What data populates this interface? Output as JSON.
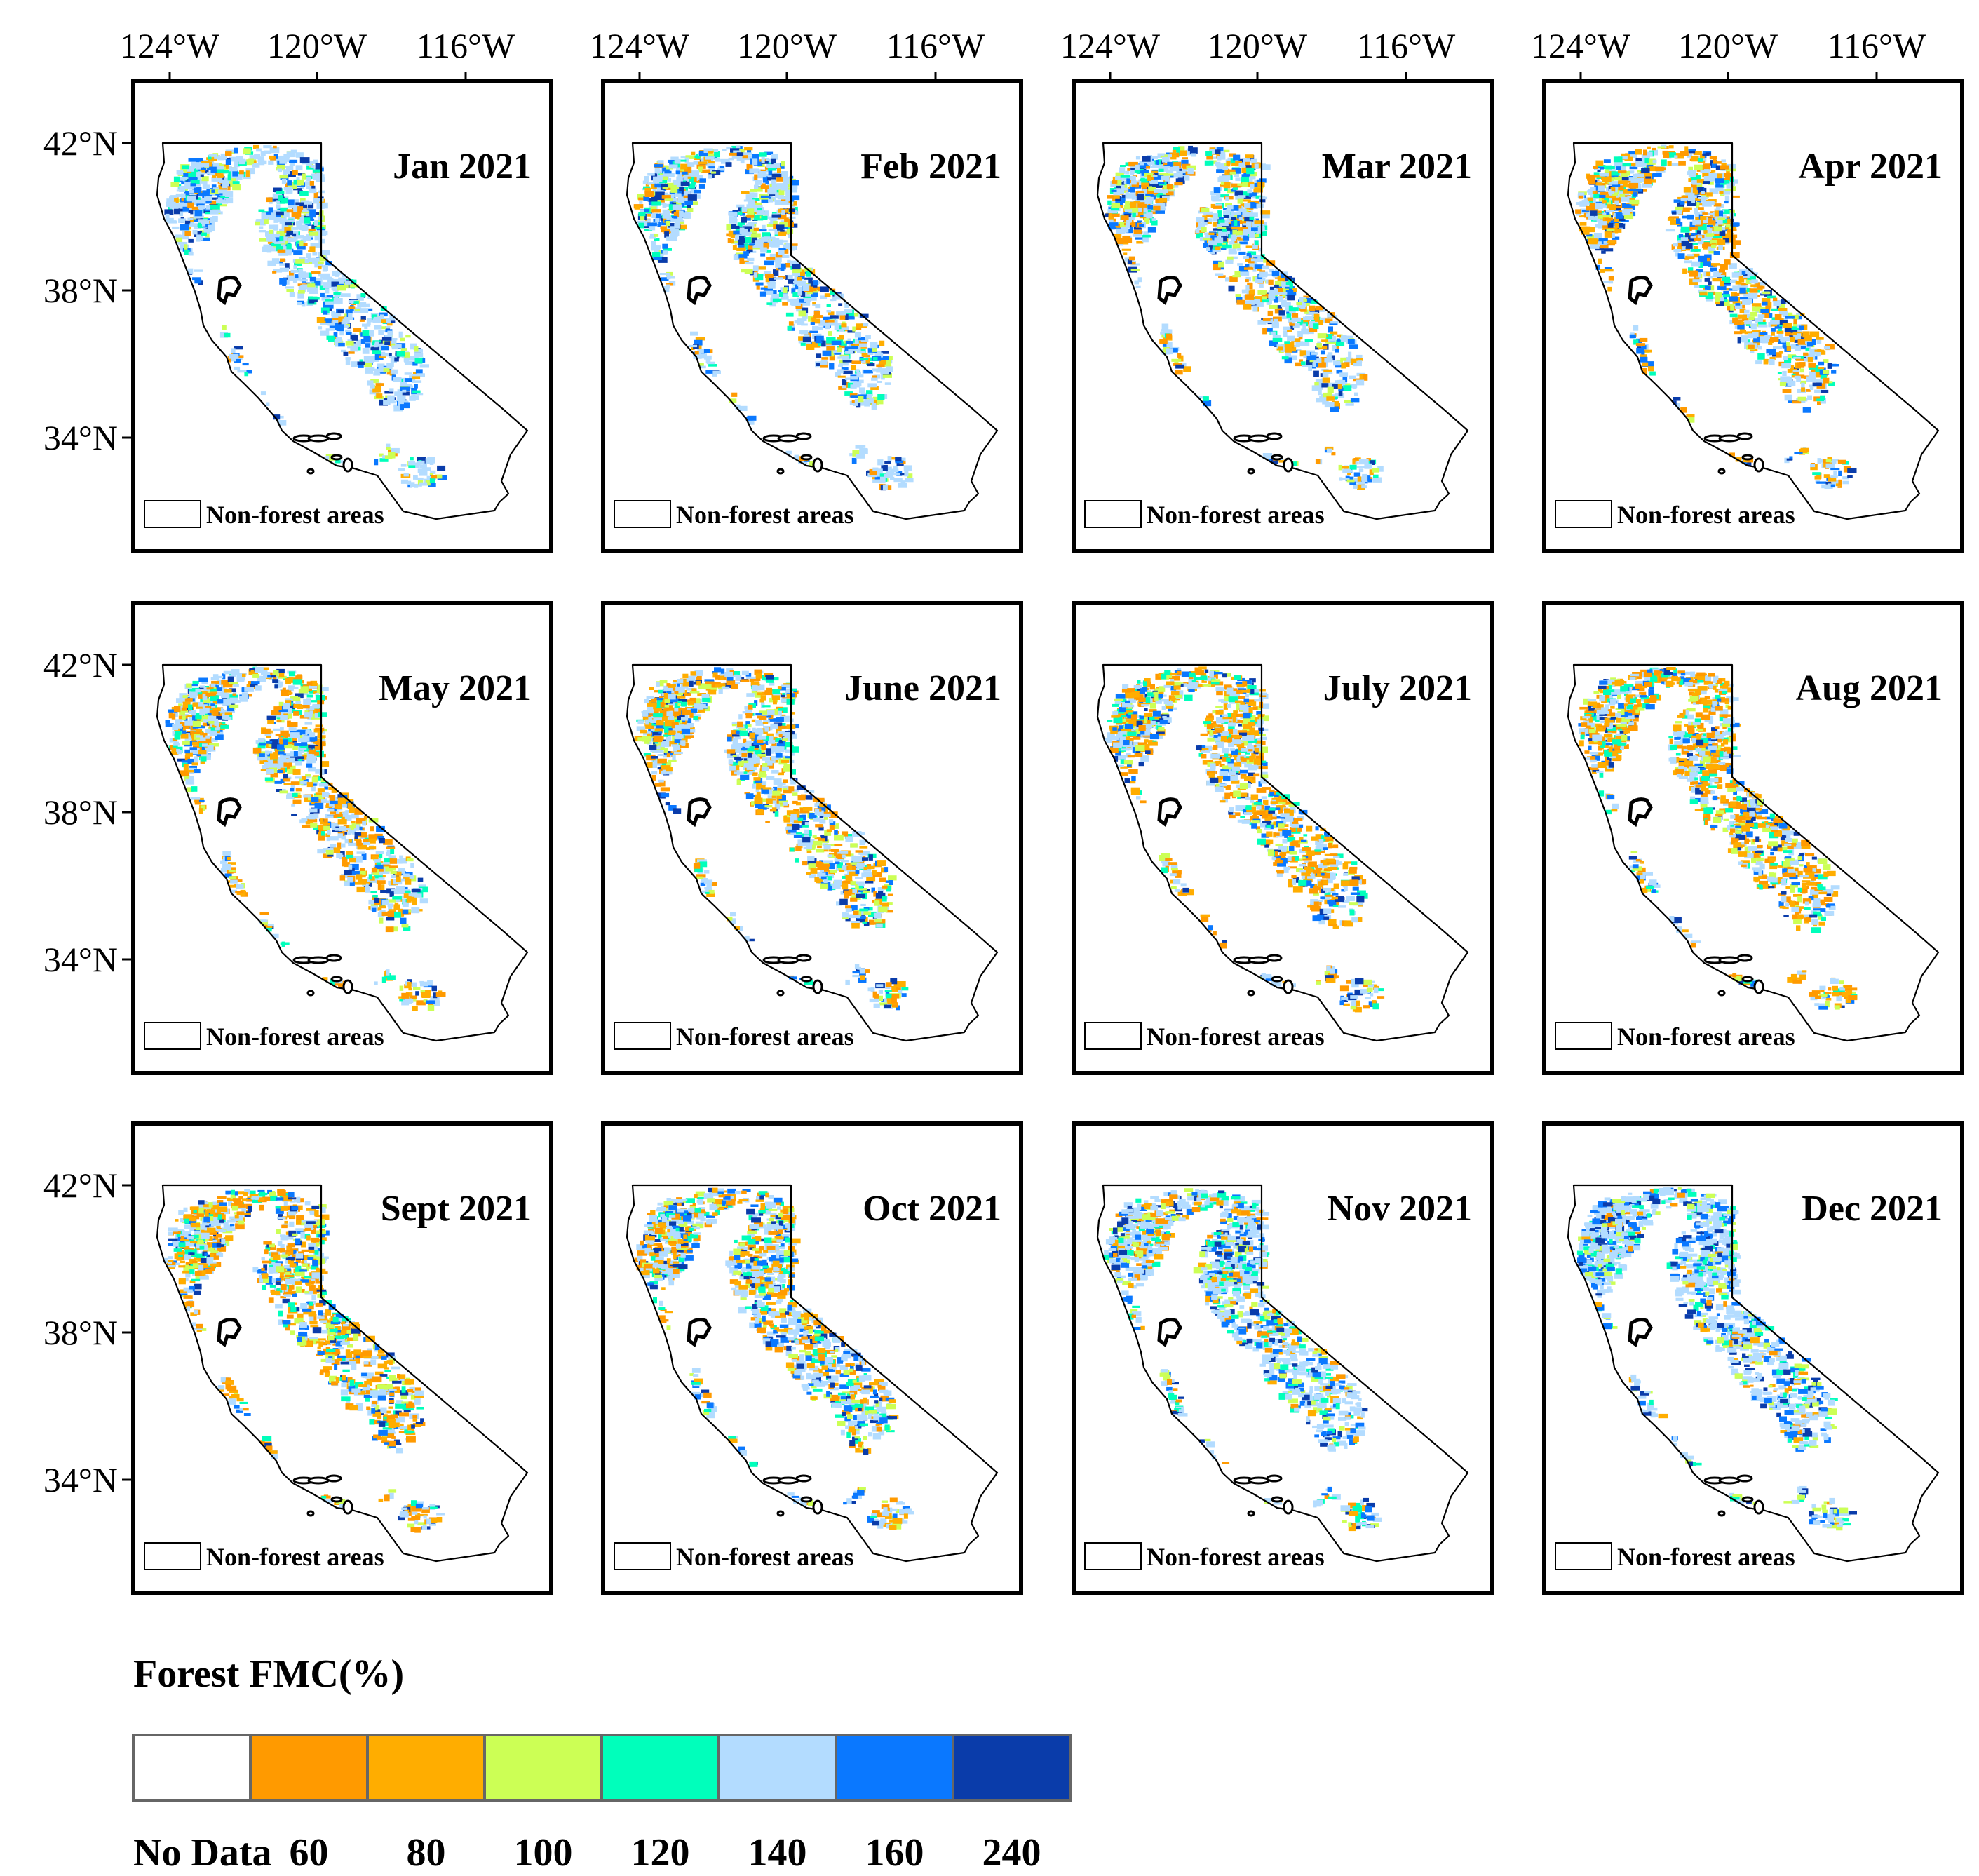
{
  "figure": {
    "lon_labels": [
      "124°W",
      "120°W",
      "116°W"
    ],
    "lat_labels": [
      "42°N",
      "38°N",
      "34°N"
    ],
    "nonforest_legend_label": "Non-forest areas",
    "panels": [
      {
        "title": "Jan 2021",
        "wetness": 0.85
      },
      {
        "title": "Feb 2021",
        "wetness": 0.7
      },
      {
        "title": "Mar 2021",
        "wetness": 0.6
      },
      {
        "title": "Apr 2021",
        "wetness": 0.45
      },
      {
        "title": "May 2021",
        "wetness": 0.5
      },
      {
        "title": "June 2021",
        "wetness": 0.4
      },
      {
        "title": "July 2021",
        "wetness": 0.35
      },
      {
        "title": "Aug 2021",
        "wetness": 0.3
      },
      {
        "title": "Sept 2021",
        "wetness": 0.3
      },
      {
        "title": "Oct 2021",
        "wetness": 0.55
      },
      {
        "title": "Nov 2021",
        "wetness": 0.75
      },
      {
        "title": "Dec 2021",
        "wetness": 0.9
      }
    ]
  },
  "colorbar": {
    "title": "Forest FMC(%)",
    "colors": [
      "#ffffff",
      "#ff9a00",
      "#ffad00",
      "#ccff55",
      "#00ffbb",
      "#b3dcff",
      "#0a78ff",
      "#0a3caa"
    ],
    "tick_labels": [
      "No Data",
      "60",
      "80",
      "100",
      "120",
      "140",
      "160",
      "240"
    ]
  }
}
